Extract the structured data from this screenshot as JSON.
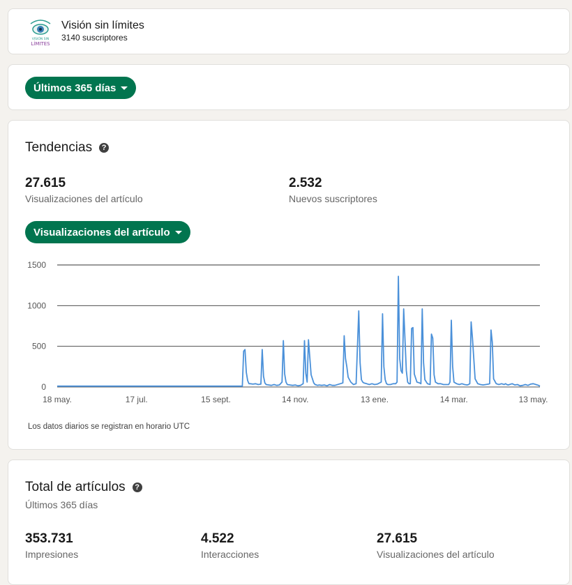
{
  "publication": {
    "name": "Visión sin límites",
    "subscribers": "3140 suscriptores",
    "logo_text_top": "VISIÓN SIN",
    "logo_text_bottom": "LÍMITES"
  },
  "filter": {
    "range_label": "Últimos 365 días"
  },
  "trends": {
    "title": "Tendencias",
    "help": "?",
    "stats": [
      {
        "value": "27.615",
        "label": "Visualizaciones del artículo"
      },
      {
        "value": "2.532",
        "label": "Nuevos suscriptores"
      }
    ],
    "metric_label": "Visualizaciones del artículo",
    "footnote": "Los datos diarios se registran en horario UTC"
  },
  "totals": {
    "title": "Total de artículos",
    "help": "?",
    "subtitle": "Últimos 365 días",
    "stats": [
      {
        "value": "353.731",
        "label": "Impresiones"
      },
      {
        "value": "4.522",
        "label": "Interacciones"
      },
      {
        "value": "27.615",
        "label": "Visualizaciones del artículo"
      }
    ]
  },
  "colors": {
    "accent": "#01754f",
    "line": "#4a90d9",
    "grid": "#333333"
  },
  "chart_data": {
    "type": "line",
    "x_tick_labels": [
      "18 may.",
      "17 jul.",
      "15 sept.",
      "14 nov.",
      "13 ene.",
      "14 mar.",
      "13 may."
    ],
    "x_tick_days": [
      0,
      60,
      120,
      180,
      240,
      300,
      360
    ],
    "y_ticks": [
      0,
      500,
      1000,
      1500
    ],
    "ylim": [
      0,
      1500
    ],
    "xlim": [
      0,
      365
    ],
    "grid": true,
    "series": [
      {
        "x": [
          0,
          140,
          141,
          142,
          143,
          144,
          145,
          146,
          148,
          150,
          152,
          154,
          155,
          156,
          157,
          158,
          160,
          162,
          164,
          166,
          168,
          170,
          171,
          172,
          173,
          174,
          176,
          178,
          180,
          182,
          184,
          186,
          187,
          188,
          189,
          190,
          192,
          194,
          195,
          196,
          197,
          198,
          200,
          202,
          204,
          206,
          208,
          210,
          216,
          217,
          218,
          219,
          220,
          222,
          224,
          226,
          228,
          229,
          230,
          231,
          232,
          234,
          236,
          238,
          240,
          242,
          245,
          246,
          247,
          248,
          249,
          250,
          252,
          254,
          256,
          257,
          258,
          259,
          260,
          261,
          262,
          264,
          265,
          266,
          267,
          268,
          269,
          270,
          272,
          274,
          275,
          276,
          277,
          278,
          280,
          282,
          283,
          284,
          285,
          286,
          288,
          290,
          292,
          294,
          296,
          297,
          298,
          299,
          300,
          302,
          304,
          306,
          308,
          310,
          311,
          312,
          313,
          314,
          316,
          318,
          320,
          322,
          324,
          326,
          327,
          328,
          329,
          330,
          332,
          334,
          336,
          338,
          339,
          340,
          341,
          342,
          344,
          346,
          348,
          350,
          352,
          354,
          356,
          358,
          360,
          362,
          364,
          365
        ],
        "y": [
          10,
          10,
          440,
          460,
          180,
          80,
          40,
          40,
          35,
          40,
          30,
          35,
          460,
          130,
          50,
          30,
          25,
          20,
          30,
          20,
          25,
          60,
          570,
          160,
          60,
          30,
          25,
          20,
          25,
          15,
          20,
          40,
          570,
          170,
          60,
          580,
          150,
          50,
          30,
          25,
          20,
          25,
          20,
          25,
          15,
          30,
          20,
          20,
          50,
          630,
          350,
          250,
          120,
          60,
          30,
          40,
          935,
          300,
          90,
          60,
          50,
          40,
          30,
          40,
          30,
          35,
          60,
          900,
          250,
          90,
          40,
          30,
          30,
          40,
          40,
          60,
          1360,
          350,
          200,
          170,
          960,
          200,
          60,
          40,
          40,
          720,
          730,
          160,
          60,
          50,
          40,
          960,
          300,
          90,
          40,
          30,
          650,
          600,
          150,
          60,
          40,
          40,
          30,
          30,
          30,
          60,
          820,
          250,
          60,
          40,
          30,
          40,
          30,
          25,
          30,
          40,
          800,
          600,
          100,
          40,
          30,
          25,
          30,
          35,
          40,
          700,
          550,
          100,
          40,
          30,
          40,
          30,
          40,
          30,
          25,
          30,
          40,
          25,
          30,
          15,
          20,
          30,
          20,
          35,
          40,
          30,
          20,
          10
        ]
      }
    ]
  }
}
